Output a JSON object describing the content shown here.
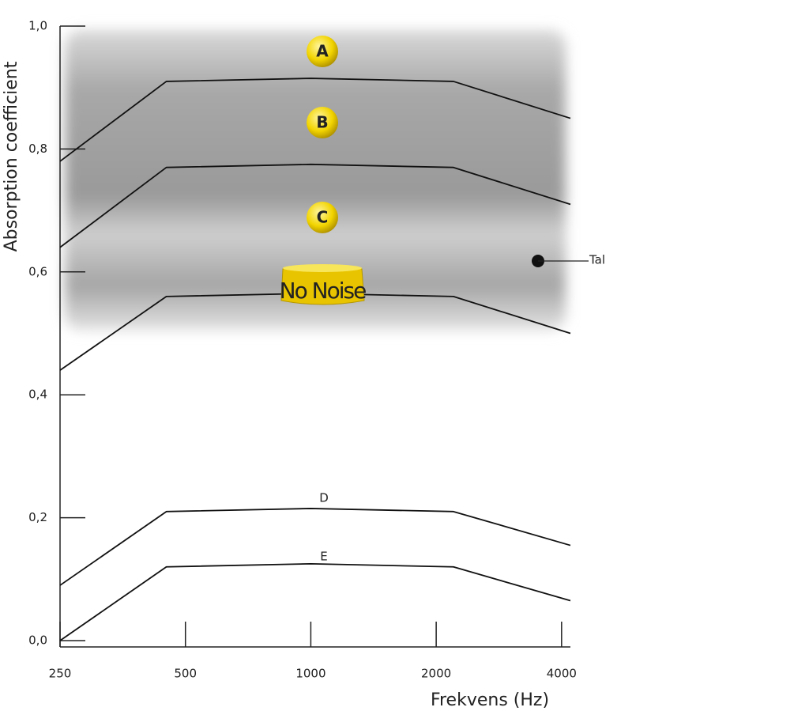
{
  "chart_data": {
    "type": "line",
    "xscale": "log",
    "x_label": "Frekvens (Hz)",
    "y_label": "Absorption coefficient",
    "x": [
      250,
      450,
      1000,
      2200,
      4200
    ],
    "series": [
      {
        "name": "A",
        "color": "#111111",
        "values": [
          0.78,
          0.91,
          0.915,
          0.91,
          0.85
        ]
      },
      {
        "name": "B",
        "color": "#111111",
        "values": [
          0.64,
          0.77,
          0.775,
          0.77,
          0.71
        ]
      },
      {
        "name": "No Noise",
        "color": "#111111",
        "values": [
          0.44,
          0.56,
          0.565,
          0.56,
          0.5
        ]
      },
      {
        "name": "D",
        "color": "#111111",
        "values": [
          0.09,
          0.21,
          0.215,
          0.21,
          0.155
        ]
      },
      {
        "name": "E",
        "color": "#111111",
        "values": [
          0.0,
          0.12,
          0.125,
          0.12,
          0.065
        ]
      }
    ],
    "annotations": [
      "C",
      "Tal"
    ],
    "xlim": [
      250,
      4200
    ],
    "xticks": [
      250,
      500,
      1000,
      2000,
      4000
    ],
    "ylim": [
      0,
      1
    ],
    "yticks": [
      {
        "value": 0,
        "label": "0,0"
      },
      {
        "value": 0.2,
        "label": "0,2"
      },
      {
        "value": 0.4,
        "label": "0,4"
      },
      {
        "value": 0.6,
        "label": "0,6"
      },
      {
        "value": 0.8,
        "label": "0,8"
      },
      {
        "value": 1,
        "label": "1,0"
      }
    ]
  }
}
